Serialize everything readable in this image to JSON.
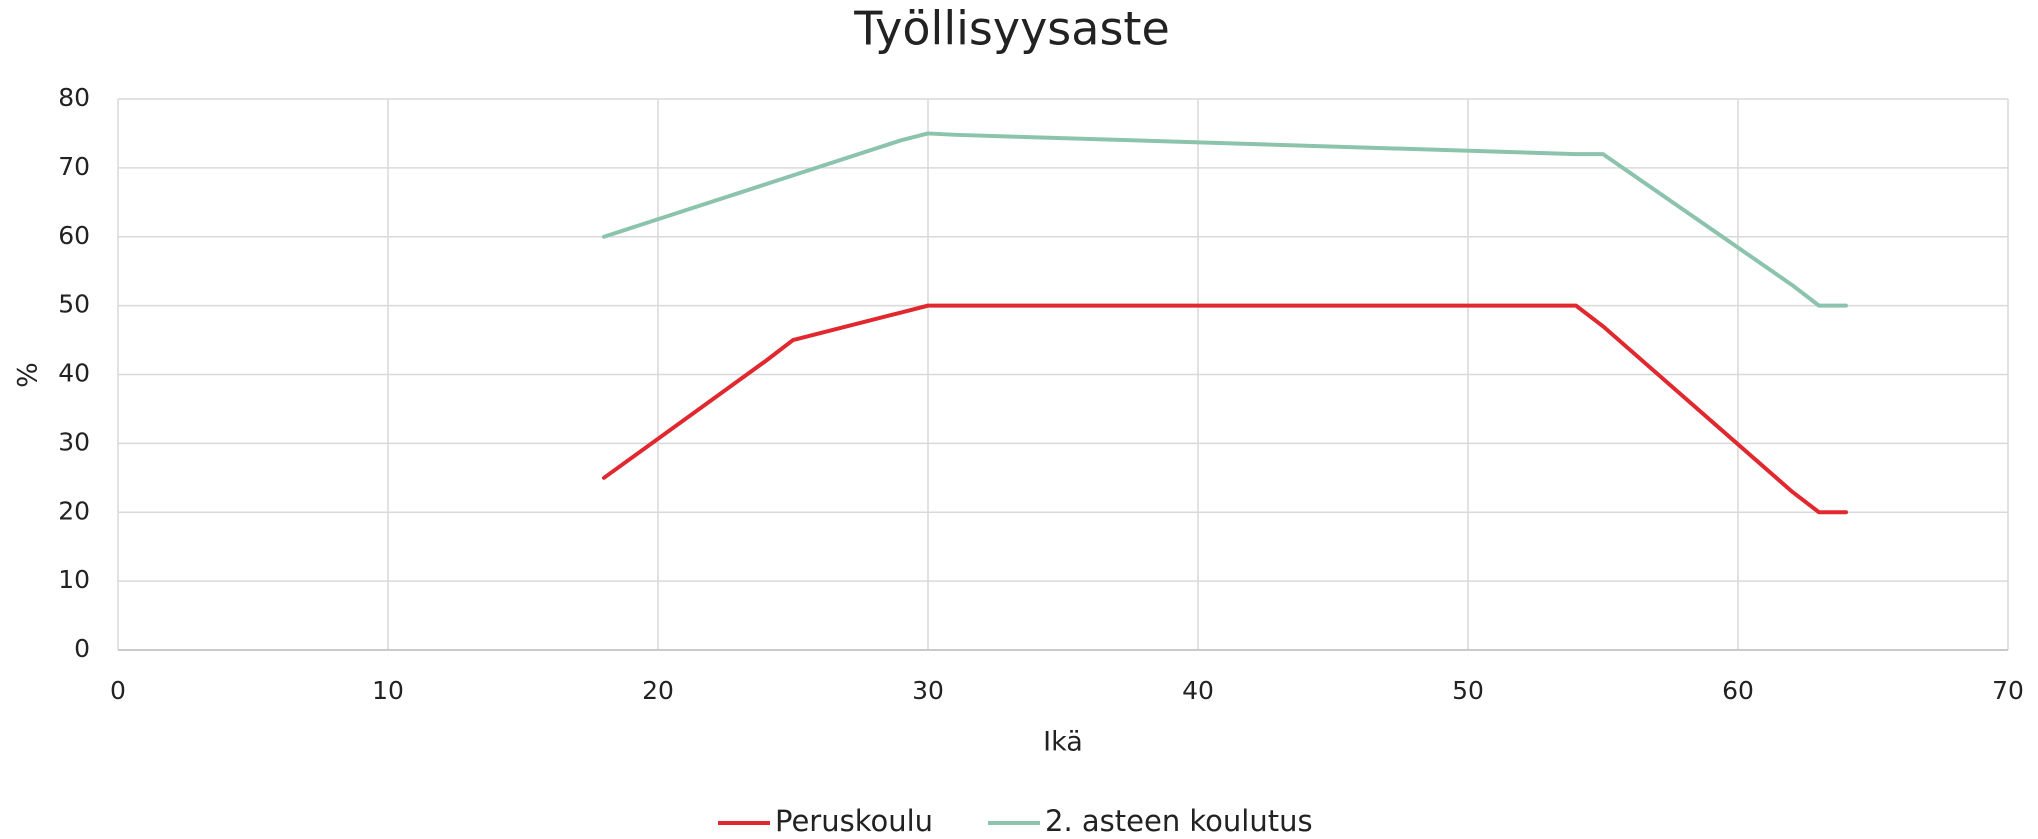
{
  "chart_data": {
    "type": "line",
    "title": "Työllisyysaste",
    "xlabel": "Ikä",
    "ylabel": "%",
    "series": [
      {
        "name": "Peruskoulu",
        "color": "#e0282e",
        "x": [
          18,
          24,
          25,
          26,
          29,
          30,
          31,
          53,
          54,
          55,
          62,
          63,
          64
        ],
        "values": [
          25,
          42,
          45,
          46,
          49,
          50,
          50,
          50,
          50,
          47,
          23,
          20,
          20
        ]
      },
      {
        "name": "2. asteen koulutus",
        "color": "#8cc3ad",
        "x": [
          18,
          29,
          30,
          31,
          54,
          55,
          62,
          63,
          64
        ],
        "values": [
          60,
          74,
          75,
          74.8,
          72,
          72,
          53,
          50,
          50
        ]
      }
    ],
    "xlim": [
      0,
      70
    ],
    "xticks": [
      0,
      10,
      20,
      30,
      40,
      50,
      60,
      70
    ],
    "ylim": [
      0,
      80
    ],
    "yticks": [
      0,
      10,
      20,
      30,
      40,
      50,
      60,
      70,
      80
    ],
    "grid": true,
    "legend": "bottom"
  }
}
